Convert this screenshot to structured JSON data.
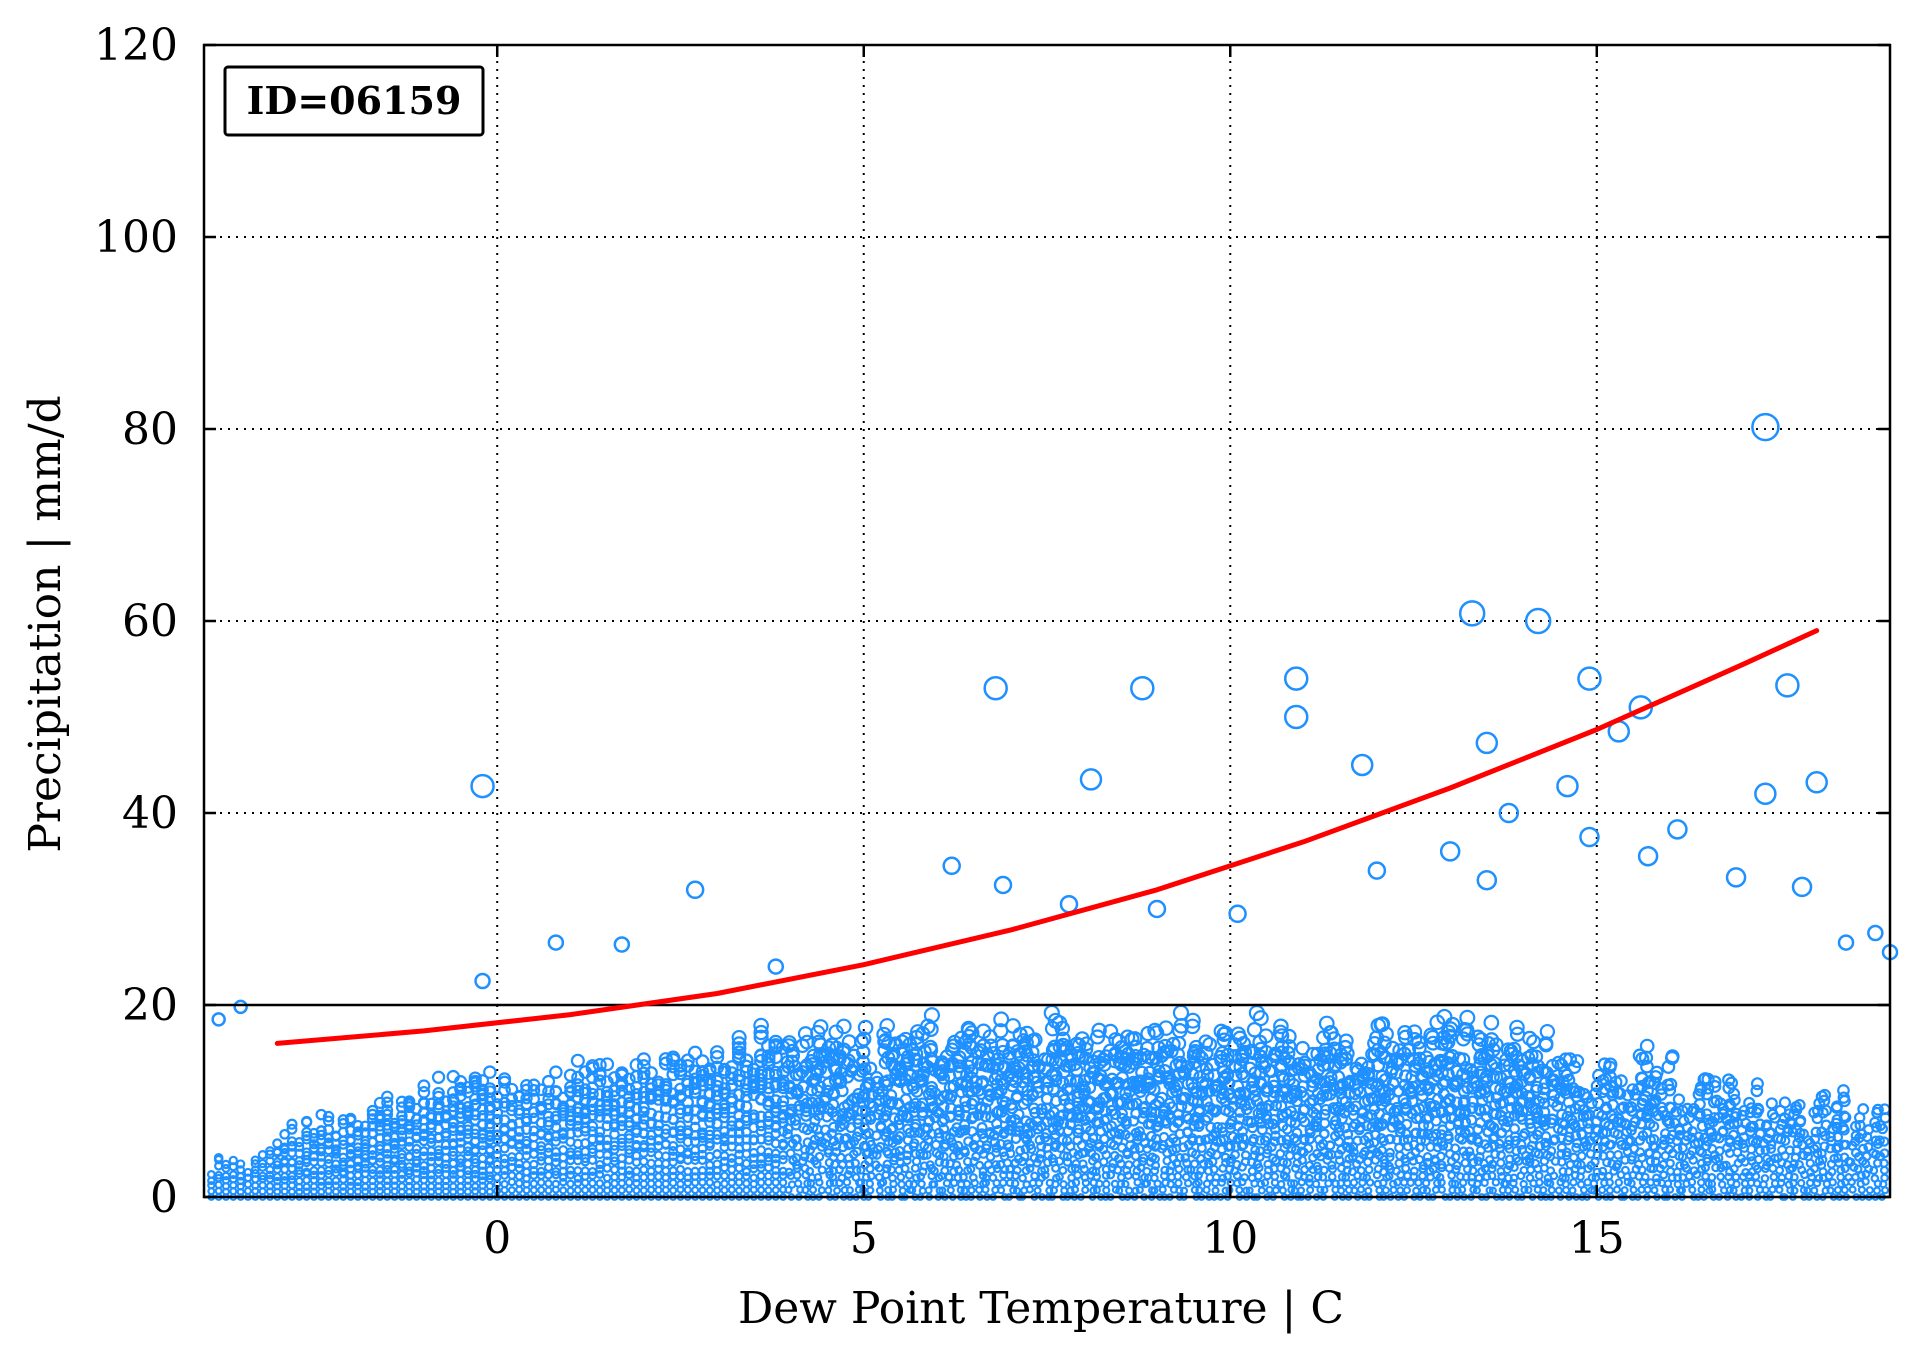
{
  "chart_data": {
    "type": "scatter",
    "title": "",
    "xlabel": "Dew Point Temperature | C",
    "ylabel": "Precipitation | mm/d",
    "xlim": [
      -4,
      19
    ],
    "ylim": [
      0,
      120
    ],
    "x_ticks": [
      0,
      5,
      10,
      15
    ],
    "y_ticks": [
      0,
      20,
      40,
      60,
      80,
      100,
      120
    ],
    "grid": true,
    "annotation": "ID=06159",
    "colors": {
      "points": "#1e90ff",
      "fit": "#ff0000",
      "threshold": "#000000"
    },
    "threshold_line": {
      "y": 20
    },
    "fit_curve": {
      "x": [
        -3,
        -1,
        1,
        3,
        5,
        7,
        9,
        11,
        13,
        15,
        17,
        18
      ],
      "y": [
        16.0,
        17.3,
        19.0,
        21.2,
        24.2,
        27.8,
        32.0,
        37.0,
        42.6,
        48.7,
        55.5,
        59.0
      ]
    },
    "series": [
      {
        "marker": "circle",
        "x": [
          -3.8,
          -3.5,
          -0.2,
          -0.2,
          0.8,
          1.7,
          2.7,
          3.8,
          6.2,
          6.8,
          6.9,
          7.8,
          8.1,
          8.8,
          9.0,
          10.1,
          10.9,
          10.9,
          11.8,
          12.0,
          13.0,
          13.3,
          13.5,
          13.5,
          13.8,
          14.2,
          14.6,
          14.9,
          14.9,
          15.6,
          15.7,
          16.1,
          16.9,
          17.3,
          17.6,
          18.0,
          18.4,
          18.8,
          19.0,
          17.3,
          17.8,
          15.3
        ],
        "y": [
          18.5,
          19.8,
          42.8,
          22.5,
          26.5,
          26.3,
          32.0,
          24.0,
          34.5,
          53.0,
          32.5,
          30.5,
          43.5,
          53.0,
          30.0,
          29.5,
          54.0,
          50.0,
          45.0,
          34.0,
          36.0,
          60.8,
          47.3,
          33.0,
          40.0,
          60.0,
          42.8,
          54.0,
          37.5,
          51.0,
          35.5,
          38.3,
          33.3,
          80.2,
          53.3,
          43.2,
          26.5,
          27.5,
          25.5,
          42.0,
          32.3,
          48.5
        ],
        "sizes": [
          6,
          6,
          11,
          7,
          7,
          7,
          8,
          7,
          8,
          11,
          8,
          8,
          10,
          11,
          8,
          8,
          11,
          11,
          10,
          8,
          9,
          12,
          10,
          9,
          9,
          12,
          10,
          11,
          9,
          11,
          9,
          9,
          9,
          13,
          11,
          10,
          7,
          7,
          7,
          10,
          9,
          10
        ]
      }
    ]
  }
}
